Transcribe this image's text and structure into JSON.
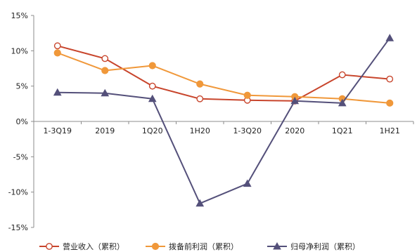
{
  "chart_data": {
    "type": "line",
    "categories": [
      "1-3Q19",
      "2019",
      "1Q20",
      "1H20",
      "1-3Q20",
      "2020",
      "1Q21",
      "1H21"
    ],
    "y_ticks": [
      "15%",
      "10%",
      "5%",
      "0%",
      "-5%",
      "-10%",
      "-15%"
    ],
    "ylim": [
      -15,
      15
    ],
    "y_unit": "%",
    "grid": false,
    "legend_position": "bottom",
    "series": [
      {
        "name": "营业收入（累积）",
        "color": "#C8452C",
        "marker": "circle-open",
        "values": [
          10.7,
          8.9,
          5.0,
          3.2,
          3.0,
          2.9,
          6.6,
          6.0
        ]
      },
      {
        "name": "拨备前利润（累积）",
        "color": "#F0983A",
        "marker": "circle-filled",
        "values": [
          9.7,
          7.2,
          7.9,
          5.3,
          3.7,
          3.5,
          3.2,
          2.6
        ]
      },
      {
        "name": "归母净利润（累积）",
        "color": "#54507A",
        "marker": "triangle",
        "values": [
          4.1,
          4.0,
          3.2,
          -11.6,
          -8.8,
          2.9,
          2.6,
          11.8
        ]
      }
    ]
  }
}
